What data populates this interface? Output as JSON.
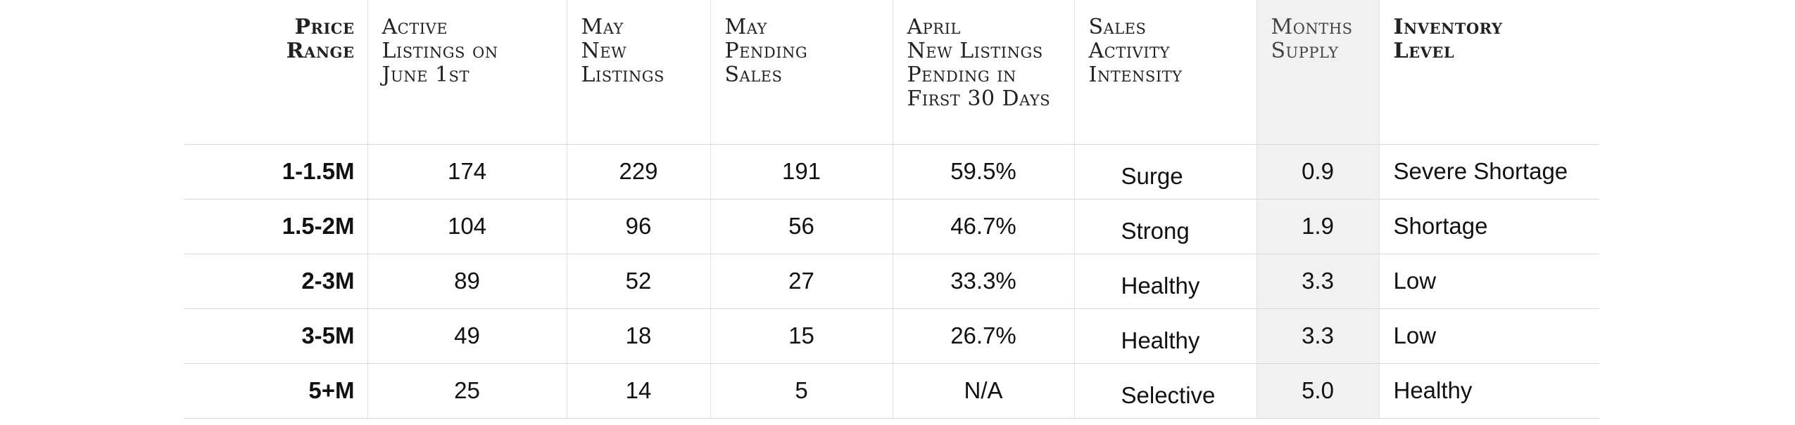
{
  "headers": {
    "price_range": [
      "Price",
      "Range"
    ],
    "active_listings": [
      "Active",
      "Listings on",
      "June 1st"
    ],
    "may_new_listings": [
      "May",
      "New",
      "Listings"
    ],
    "may_pending_sales": [
      "May",
      "Pending",
      "Sales"
    ],
    "april_pending": [
      "April",
      "New Listings",
      "Pending in",
      "First 30 Days"
    ],
    "sales_activity": [
      "Sales",
      "Activity",
      "Intensity"
    ],
    "months_supply": [
      "Months",
      "Supply"
    ],
    "inventory_level": [
      "Inventory",
      "Level"
    ]
  },
  "rows": [
    {
      "price": "1-1.5M",
      "active": "174",
      "new": "229",
      "pending": "191",
      "april": "59.5%",
      "intensity": "Surge",
      "months": "0.9",
      "inventory": "Severe Shortage"
    },
    {
      "price": "1.5-2M",
      "active": "104",
      "new": "96",
      "pending": "56",
      "april": "46.7%",
      "intensity": "Strong",
      "months": "1.9",
      "inventory": "Shortage"
    },
    {
      "price": "2-3M",
      "active": "89",
      "new": "52",
      "pending": "27",
      "april": "33.3%",
      "intensity": "Healthy",
      "months": "3.3",
      "inventory": "Low"
    },
    {
      "price": "3-5M",
      "active": "49",
      "new": "18",
      "pending": "15",
      "april": "26.7%",
      "intensity": "Healthy",
      "months": "3.3",
      "inventory": "Low"
    },
    {
      "price": "5+M",
      "active": "25",
      "new": "14",
      "pending": "5",
      "april": "N/A",
      "intensity": "Selective",
      "months": "5.0",
      "inventory": "Healthy"
    }
  ]
}
